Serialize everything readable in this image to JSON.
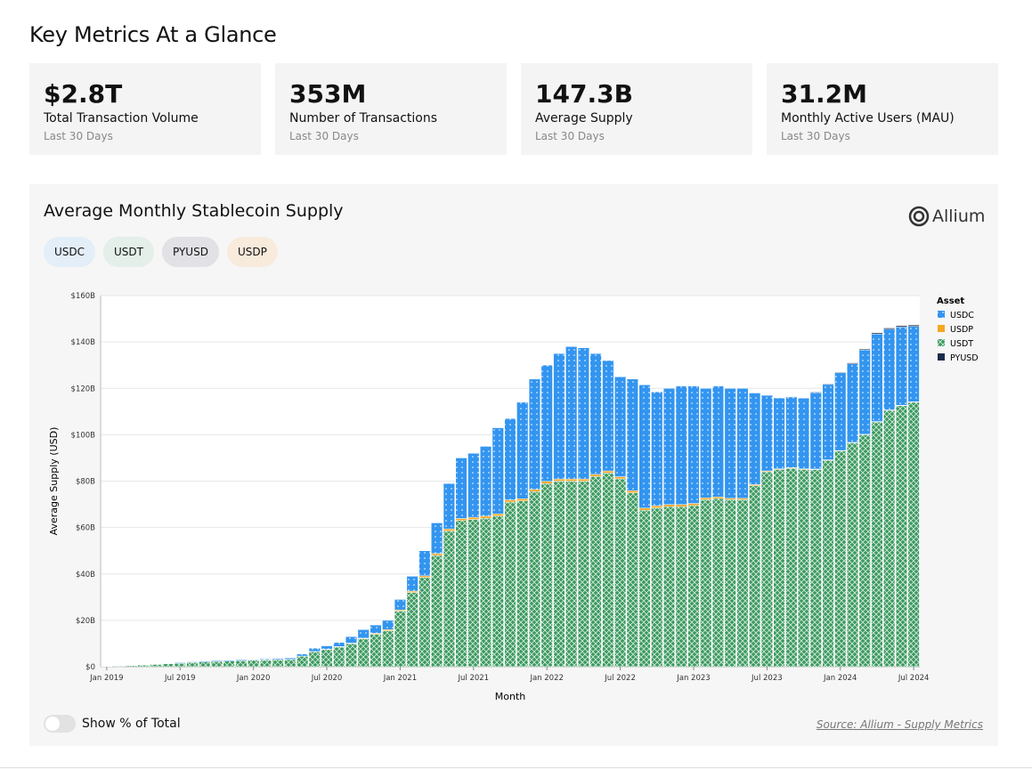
{
  "header": {
    "title": "Key Metrics At a Glance"
  },
  "metrics": [
    {
      "value": "$2.8T",
      "label": "Total Transaction Volume",
      "period": "Last 30 Days"
    },
    {
      "value": "353M",
      "label": "Number of Transactions",
      "period": "Last 30 Days"
    },
    {
      "value": "147.3B",
      "label": "Average Supply",
      "period": "Last 30 Days"
    },
    {
      "value": "31.2M",
      "label": "Monthly Active Users (MAU)",
      "period": "Last 30 Days"
    }
  ],
  "filters": [
    "USDC",
    "USDT",
    "PYUSD",
    "USDP"
  ],
  "logo": "Allium",
  "toggle": "Show % of Total",
  "source": "Source: Allium - Supply Metrics",
  "chart_data": {
    "type": "stacked_bar",
    "title": "Average Monthly Stablecoin Supply",
    "x_label": "Month",
    "y_label": "Average Supply (USD)",
    "legend_title": "Asset",
    "legend": "right",
    "grid": true,
    "categories": [
      "Jan 2019",
      null,
      null,
      null,
      null,
      null,
      "Jul 2019",
      null,
      null,
      null,
      null,
      null,
      "Jan 2020",
      null,
      null,
      null,
      null,
      null,
      "Jul 2020",
      null,
      null,
      null,
      null,
      null,
      "Jan 2021",
      null,
      null,
      null,
      null,
      null,
      "Jul 2021",
      null,
      null,
      null,
      null,
      null,
      "Jan 2022",
      null,
      null,
      null,
      null,
      null,
      "Jul 2022",
      null,
      null,
      null,
      null,
      null,
      "Jan 2023",
      null,
      null,
      null,
      null,
      null,
      "Jul 2023",
      null,
      null,
      null,
      null,
      null,
      "Jan 2024",
      null,
      null,
      null,
      null,
      null,
      "Jul 2024"
    ],
    "ylim": [
      0,
      160
    ],
    "yticks": [
      {
        "value": 0,
        "label": "$0"
      },
      {
        "value": 20,
        "label": "$20B"
      },
      {
        "value": 40,
        "label": "$40B"
      },
      {
        "value": 60,
        "label": "$60B"
      },
      {
        "value": 80,
        "label": "$80B"
      },
      {
        "value": 100,
        "label": "$100B"
      },
      {
        "value": 120,
        "label": "$120B"
      },
      {
        "value": 140,
        "label": "$140B"
      },
      {
        "value": 160,
        "label": "$160B"
      }
    ],
    "series": [
      {
        "name": "USDC",
        "color": "#3395f0",
        "values": [
          0.1,
          0.1,
          0.1,
          0.2,
          0.2,
          0.2,
          0.3,
          0.3,
          0.4,
          0.4,
          0.4,
          0.4,
          0.3,
          0.4,
          0.5,
          0.6,
          0.9,
          1.4,
          1.4,
          1.8,
          2.8,
          3.7,
          3.6,
          4.0,
          4.5,
          6.4,
          10.8,
          13.2,
          19.6,
          26.1,
          27.6,
          30.1,
          37.1,
          35.1,
          41.6,
          47.6,
          50.1,
          54.1,
          57.1,
          56.6,
          52.1,
          47.6,
          43.1,
          48.1,
          53.1,
          49.1,
          50.1,
          51.1,
          50.6,
          47.2,
          47.8,
          47.4,
          47.4,
          39.5,
          32.6,
          30.6,
          30.5,
          30.5,
          33.0,
          32.5,
          33.5,
          33.9,
          36.4,
          37.8,
          34.8,
          33.8,
          32.5
        ]
      },
      {
        "name": "USDP",
        "color": "#f5a623",
        "values": [
          0,
          0,
          0,
          0,
          0,
          0,
          0,
          0,
          0,
          0,
          0,
          0,
          0.1,
          0.1,
          0.1,
          0.1,
          0.1,
          0.1,
          0.1,
          0.2,
          0.2,
          0.3,
          0.4,
          0.5,
          0.5,
          0.6,
          0.7,
          0.8,
          0.9,
          0.9,
          0.9,
          0.9,
          0.9,
          0.9,
          0.9,
          0.9,
          0.9,
          0.9,
          0.9,
          0.9,
          0.9,
          0.9,
          0.9,
          0.9,
          0.9,
          0.9,
          0.9,
          0.9,
          0.9,
          0.8,
          0.7,
          0.6,
          0.6,
          0.5,
          0.4,
          0.3,
          0.3,
          0.3,
          0.2,
          0.2,
          0.2,
          0.2,
          0.2,
          0.2,
          0.2,
          0.2,
          0.2
        ]
      },
      {
        "name": "USDT",
        "color": "#3a9a5e",
        "values": [
          0.2,
          0.3,
          0.5,
          0.7,
          1.0,
          1.3,
          1.5,
          1.8,
          2.0,
          2.2,
          2.4,
          2.6,
          2.8,
          2.9,
          3.0,
          3.1,
          4.5,
          6.5,
          7.5,
          8.5,
          10,
          12,
          14,
          15.5,
          24,
          32,
          38.5,
          48,
          58.5,
          63,
          63.5,
          64,
          65,
          71,
          71.5,
          75.5,
          79,
          80,
          80,
          80,
          82,
          83.5,
          81,
          75,
          67.5,
          68.5,
          69,
          69,
          69.5,
          72,
          72.5,
          72,
          72,
          78,
          84,
          85,
          85.5,
          85,
          85,
          89,
          93,
          96.5,
          100,
          105.5,
          110.5,
          112.5,
          114
        ]
      },
      {
        "name": "PYUSD",
        "color": "#1a2b4a",
        "values": [
          0,
          0,
          0,
          0,
          0,
          0,
          0,
          0,
          0,
          0,
          0,
          0,
          0,
          0,
          0,
          0,
          0,
          0,
          0,
          0,
          0,
          0,
          0,
          0,
          0,
          0,
          0,
          0,
          0,
          0,
          0,
          0,
          0,
          0,
          0,
          0,
          0,
          0,
          0,
          0,
          0,
          0,
          0,
          0,
          0,
          0,
          0,
          0,
          0,
          0,
          0,
          0,
          0,
          0,
          0,
          0.1,
          0.2,
          0.2,
          0.3,
          0.3,
          0.3,
          0.4,
          0.4,
          0.5,
          0.5,
          0.5,
          0.6
        ]
      }
    ]
  }
}
